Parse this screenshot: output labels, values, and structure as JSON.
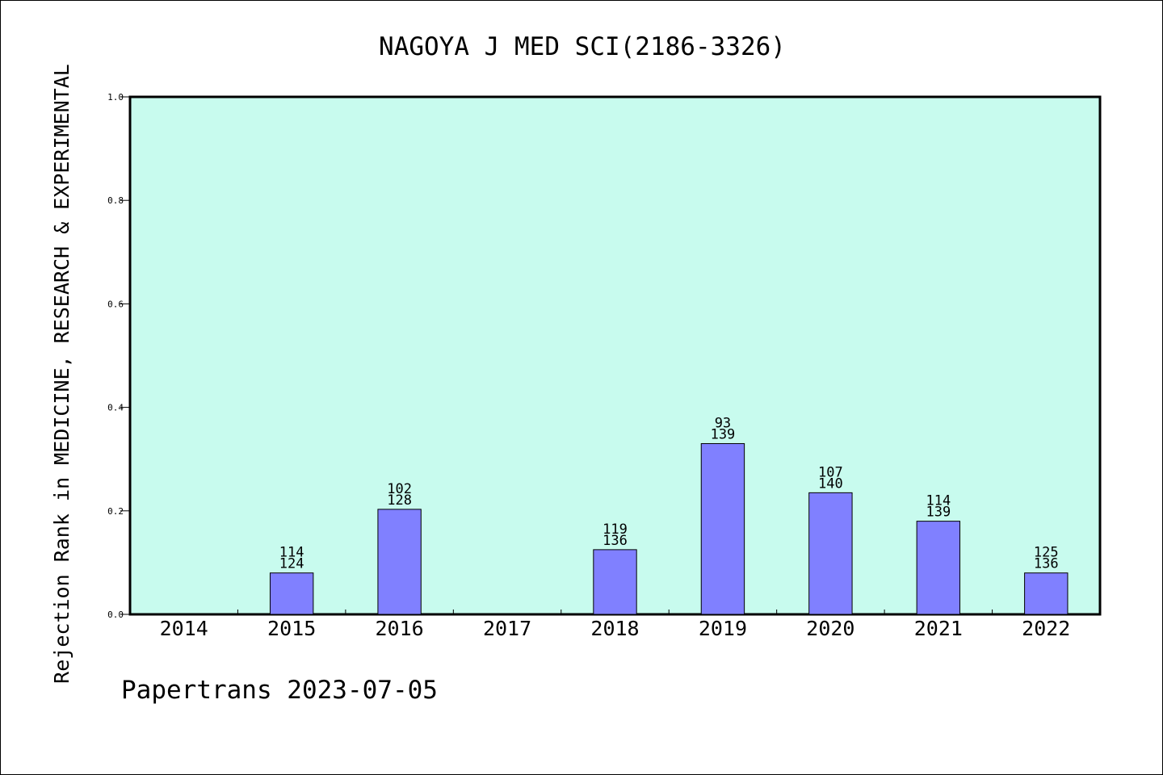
{
  "chart_data": {
    "type": "bar",
    "title": "NAGOYA J MED SCI(2186-3326)",
    "xlabel": "",
    "ylabel": "Rejection Rank in MEDICINE, RESEARCH & EXPERIMENTAL",
    "ylim": [
      0,
      1.0
    ],
    "yticks": [
      "0.0",
      "0.2",
      "0.4",
      "0.6",
      "0.8",
      "1.0"
    ],
    "grid": false,
    "categories": [
      "2014",
      "2015",
      "2016",
      "2017",
      "2018",
      "2019",
      "2020",
      "2021",
      "2022"
    ],
    "values": [
      null,
      0.08,
      0.203,
      null,
      0.125,
      0.33,
      0.235,
      0.18,
      0.08
    ],
    "bar_labels": [
      null,
      [
        "114",
        "124"
      ],
      [
        "102",
        "128"
      ],
      null,
      [
        "119",
        "136"
      ],
      [
        "93",
        "139"
      ],
      [
        "107",
        "140"
      ],
      [
        "114",
        "139"
      ],
      [
        "125",
        "136"
      ]
    ],
    "colors": {
      "plot_background": "#c8fbee",
      "bar_fill": "#8080ff",
      "bar_stroke": "#000000"
    }
  },
  "footer": "Papertrans 2023-07-05"
}
